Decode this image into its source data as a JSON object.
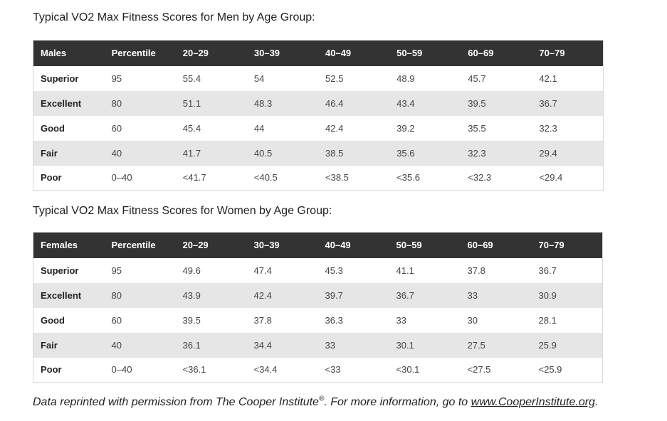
{
  "men": {
    "heading": "Typical VO2 Max Fitness Scores for Men by Age Group:",
    "headers": [
      "Males",
      "Percentile",
      "20–29",
      "30–39",
      "40–49",
      "50–59",
      "60–69",
      "70–79"
    ],
    "rows": [
      [
        "Superior",
        "95",
        "55.4",
        "54",
        "52.5",
        "48.9",
        "45.7",
        "42.1"
      ],
      [
        "Excellent",
        "80",
        "51.1",
        "48.3",
        "46.4",
        "43.4",
        "39.5",
        "36.7"
      ],
      [
        "Good",
        "60",
        "45.4",
        "44",
        "42.4",
        "39.2",
        "35.5",
        "32.3"
      ],
      [
        "Fair",
        "40",
        "41.7",
        "40.5",
        "38.5",
        "35.6",
        "32.3",
        "29.4"
      ],
      [
        "Poor",
        "0–40",
        "<41.7",
        "<40.5",
        "<38.5",
        "<35.6",
        "<32.3",
        "<29.4"
      ]
    ]
  },
  "women": {
    "heading": "Typical VO2 Max Fitness Scores for Women by Age Group:",
    "headers": [
      "Females",
      "Percentile",
      "20–29",
      "30–39",
      "40–49",
      "50–59",
      "60–69",
      "70–79"
    ],
    "rows": [
      [
        "Superior",
        "95",
        "49.6",
        "47.4",
        "45.3",
        "41.1",
        "37.8",
        "36.7"
      ],
      [
        "Excellent",
        "80",
        "43.9",
        "42.4",
        "39.7",
        "36.7",
        "33",
        "30.9"
      ],
      [
        "Good",
        "60",
        "39.5",
        "37.8",
        "36.3",
        "33",
        "30",
        "28.1"
      ],
      [
        "Fair",
        "40",
        "36.1",
        "34.4",
        "33",
        "30.1",
        "27.5",
        "25.9"
      ],
      [
        "Poor",
        "0–40",
        "<36.1",
        "<34.4",
        "<33",
        "<30.1",
        "<27.5",
        "<25.9"
      ]
    ]
  },
  "footnote": {
    "prefix": "Data reprinted with permission from The Cooper Institute",
    "registered": "®",
    "middle": ". For more information, go to ",
    "link_text": "www.CooperInstitute.org",
    "suffix": "."
  },
  "colors": {
    "header_bg": "#333333",
    "stripe_bg": "#e6e6e6"
  }
}
